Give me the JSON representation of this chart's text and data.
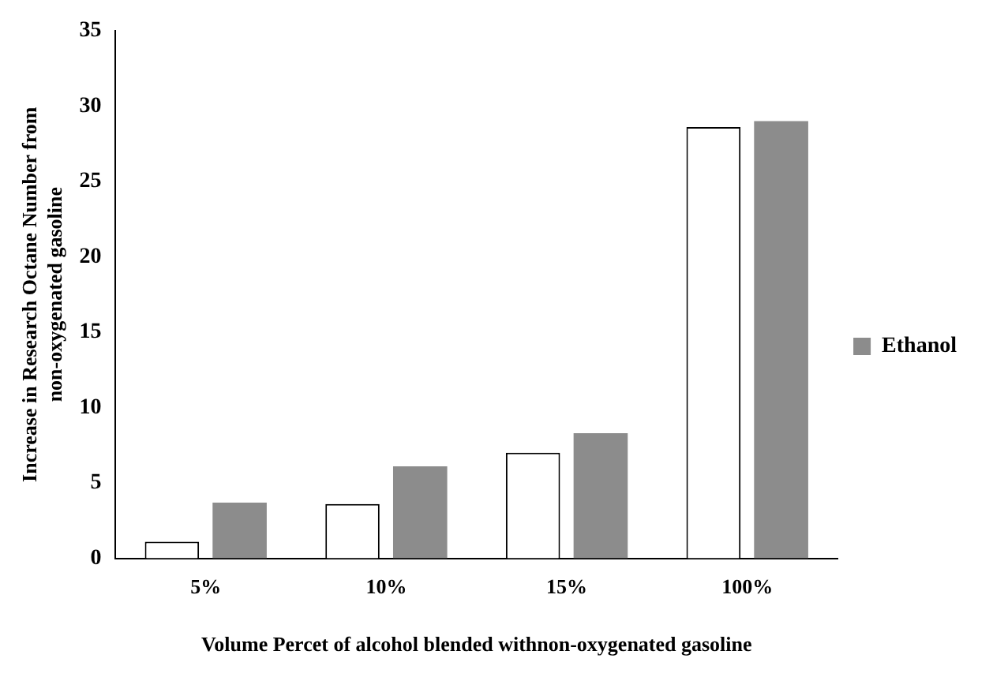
{
  "chart_data": {
    "type": "bar",
    "xlabel": "Volume Percet of alcohol blended withnon-oxygenated gasoline",
    "ylabel": "Increase in Research Octane Number from non-oxygenated gasoline",
    "categories": [
      "5%",
      "10%",
      "15%",
      "100%"
    ],
    "series": [
      {
        "color": "#ffffff",
        "values": [
          1.1,
          3.6,
          7.0,
          28.6
        ]
      },
      {
        "name": "Ethanol",
        "color": "#8c8c8c",
        "values": [
          3.7,
          6.1,
          8.3,
          29.0
        ]
      }
    ],
    "ylim": [
      0,
      35
    ],
    "yticks": [
      0,
      5,
      10,
      15,
      20,
      25,
      30,
      35
    ],
    "grid": false,
    "legend": "right"
  }
}
